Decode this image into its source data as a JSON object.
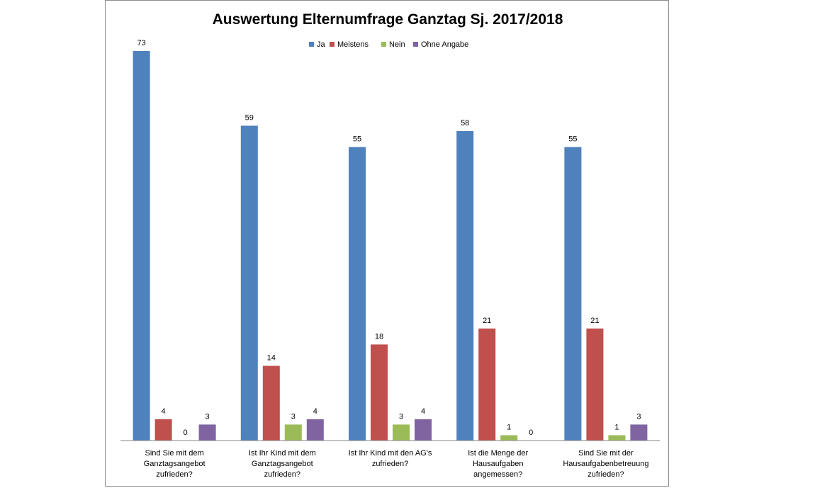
{
  "chart_data": {
    "type": "bar",
    "title": "Auswertung Elternumfrage Ganztag Sj. 2017/2018",
    "xlabel": "",
    "ylabel": "",
    "ylim": [
      0,
      80
    ],
    "grid": false,
    "legend_position": "top",
    "categories": [
      [
        "Sind Sie mit dem",
        "Ganztagsangebot",
        "zufrieden?"
      ],
      [
        "Ist Ihr Kind mit dem",
        "Ganztagsangebot",
        "zufrieden?"
      ],
      [
        "Ist Ihr Kind mit den AG's",
        "zufrieden?"
      ],
      [
        "Ist die Menge der",
        "Hausaufgaben",
        "angemessen?"
      ],
      [
        "Sind Sie mit der",
        "Hausaufgabenbetreuung",
        "zufrieden?"
      ]
    ],
    "series": [
      {
        "name": "Ja",
        "color": "#4F81BD",
        "values": [
          73,
          59,
          55,
          58,
          55
        ]
      },
      {
        "name": "Meistens",
        "color": "#C0504D",
        "values": [
          4,
          14,
          18,
          21,
          21
        ]
      },
      {
        "name": "Nein",
        "color": "#9BBB59",
        "values": [
          0,
          3,
          3,
          1,
          1
        ]
      },
      {
        "name": "Ohne Angabe",
        "color": "#8064A2",
        "values": [
          3,
          4,
          4,
          0,
          3
        ]
      }
    ]
  }
}
